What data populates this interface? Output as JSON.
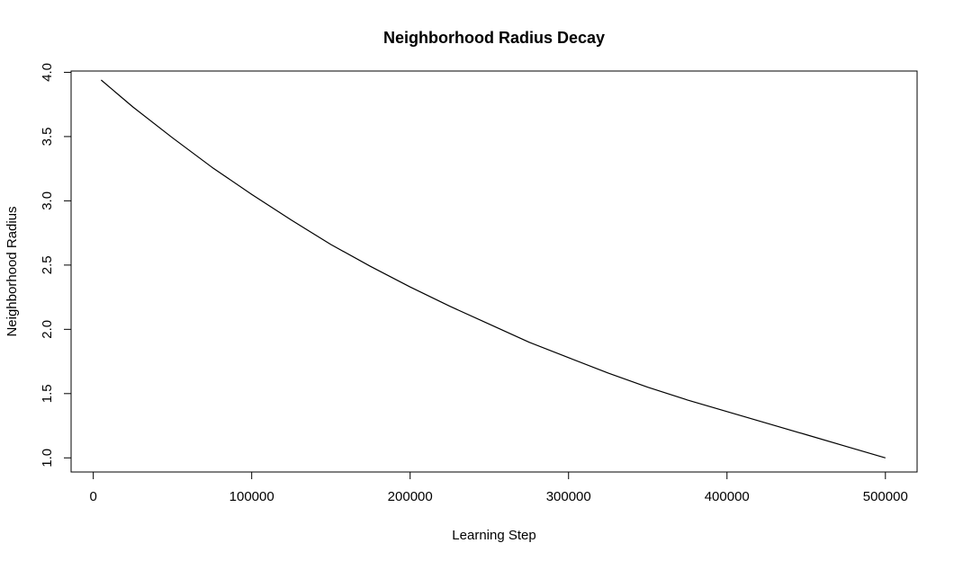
{
  "chart_data": {
    "type": "line",
    "title": "Neighborhood Radius Decay",
    "xlabel": "Learning Step",
    "ylabel": "Neighborhood Radius",
    "xlim": [
      -14000,
      520000
    ],
    "ylim": [
      0.89,
      4.01
    ],
    "x_ticks": [
      0,
      100000,
      200000,
      300000,
      400000,
      500000
    ],
    "x_tick_labels": [
      "0",
      "100000",
      "200000",
      "300000",
      "400000",
      "500000"
    ],
    "y_ticks": [
      1.0,
      1.5,
      2.0,
      2.5,
      3.0,
      3.5,
      4.0
    ],
    "y_tick_labels": [
      "1.0",
      "1.5",
      "2.0",
      "2.5",
      "3.0",
      "3.5",
      "4.0"
    ],
    "grid": false,
    "series": [
      {
        "color": "#000000",
        "x": [
          5000,
          25000,
          50000,
          75000,
          100000,
          125000,
          150000,
          175000,
          200000,
          225000,
          250000,
          275000,
          300000,
          325000,
          350000,
          375000,
          400000,
          425000,
          450000,
          475000,
          500000
        ],
        "y": [
          3.94,
          3.73,
          3.49,
          3.26,
          3.05,
          2.85,
          2.66,
          2.49,
          2.33,
          2.18,
          2.04,
          1.9,
          1.78,
          1.66,
          1.55,
          1.45,
          1.36,
          1.27,
          1.18,
          1.09,
          1.0
        ]
      }
    ]
  }
}
